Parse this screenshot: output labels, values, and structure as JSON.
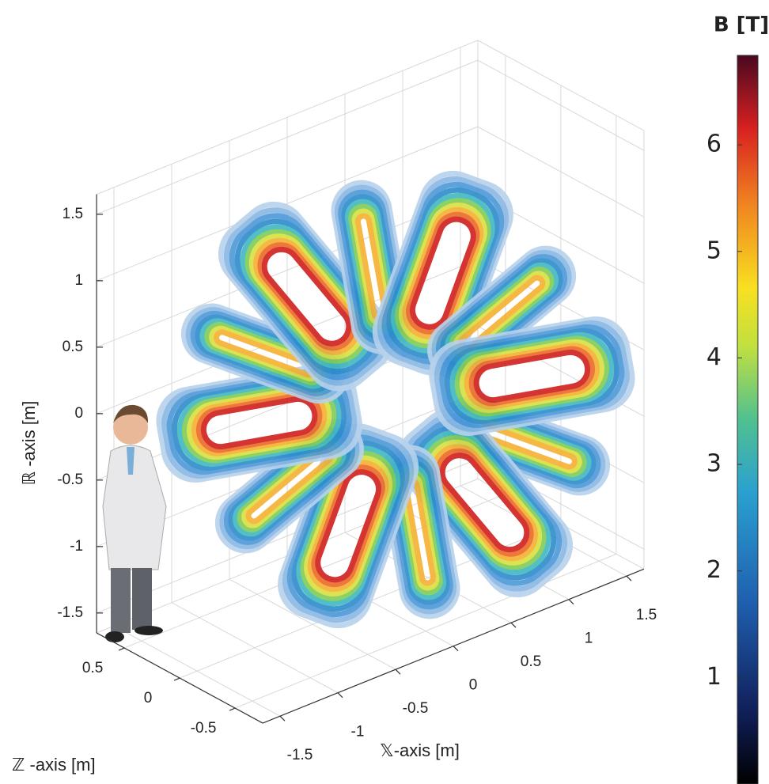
{
  "chart_data": {
    "type": "3d",
    "xlabel": "𝕏-axis [m]",
    "ylabel": "ℝ -axis [m]",
    "zlabel": "ℤ -axis [m]",
    "xlim": [
      -1.65,
      1.65
    ],
    "ylim": [
      -1.65,
      1.65
    ],
    "zlim": [
      -0.75,
      0.75
    ],
    "xticks": [
      -1.5,
      -1,
      -0.5,
      0,
      0.5,
      1,
      1.5
    ],
    "yticks": [
      -1.5,
      -1,
      -0.5,
      0,
      0.5,
      1,
      1.5
    ],
    "zticks": [
      -0.5,
      0,
      0.5
    ],
    "grid": true,
    "colorbar_title": "B [T]",
    "clim": [
      0,
      6.84
    ],
    "cticks": [
      1,
      2,
      3,
      4,
      5,
      6
    ]
  }
}
